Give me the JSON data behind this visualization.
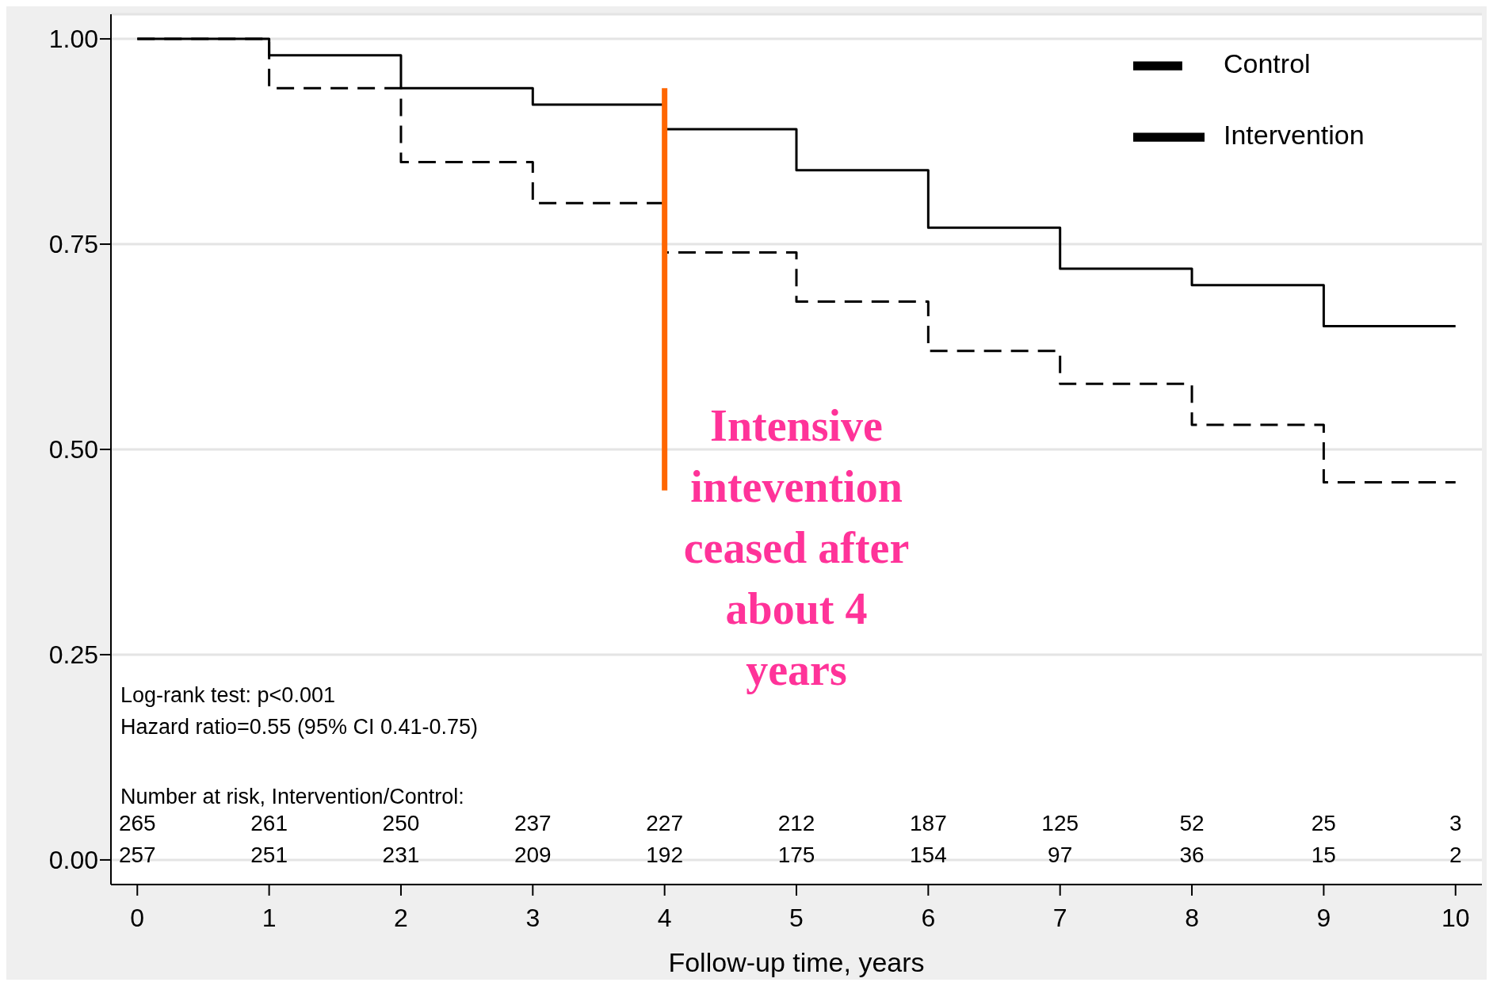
{
  "chart_data": {
    "type": "step",
    "xlabel": "Follow-up time, years",
    "xlim": [
      -0.2,
      10.2
    ],
    "xticks": [
      0,
      1,
      2,
      3,
      4,
      5,
      6,
      7,
      8,
      9,
      10
    ],
    "ylim": [
      -0.03,
      1.03
    ],
    "yticks": [
      {
        "value": 0,
        "label": "0.00"
      },
      {
        "value": 0.25,
        "label": "0.25"
      },
      {
        "value": 0.5,
        "label": "0.50"
      },
      {
        "value": 0.75,
        "label": "0.75"
      },
      {
        "value": 1,
        "label": "1.00"
      }
    ],
    "grid": "y",
    "legend": "top right",
    "marker": "none",
    "series": [
      {
        "name": "Intervention",
        "color": "#000000",
        "line_style": "solid",
        "x": [
          0,
          1,
          2,
          3,
          4,
          5,
          6,
          7,
          8,
          9,
          10
        ],
        "values": [
          1.0,
          0.98,
          0.94,
          0.92,
          0.89,
          0.84,
          0.77,
          0.72,
          0.7,
          0.65,
          0.65
        ]
      },
      {
        "name": "Control",
        "color": "#000000",
        "line_style": "dashed",
        "x": [
          0,
          1,
          2,
          3,
          4,
          5,
          6,
          7,
          8,
          9,
          10
        ],
        "values": [
          1.0,
          0.94,
          0.85,
          0.8,
          0.74,
          0.68,
          0.62,
          0.58,
          0.53,
          0.46,
          0.46
        ]
      },
      {
        "type": "line",
        "color": "#ff6600",
        "line_style": "solid",
        "x": [
          4,
          4
        ],
        "values": [
          0.45,
          0.94
        ]
      }
    ],
    "annotations": [
      "Intensive intevention ceased after about 4 years",
      "Log-rank test: p<0.001",
      "Hazard ratio=0.55 (95% CI 0.41-0.75)",
      "Number at risk, Intervention/Control:",
      "265 261 250 237 227 212 187 125 52 25 3",
      "257 251 231 209 192 175 154 97 36 15 2"
    ]
  }
}
